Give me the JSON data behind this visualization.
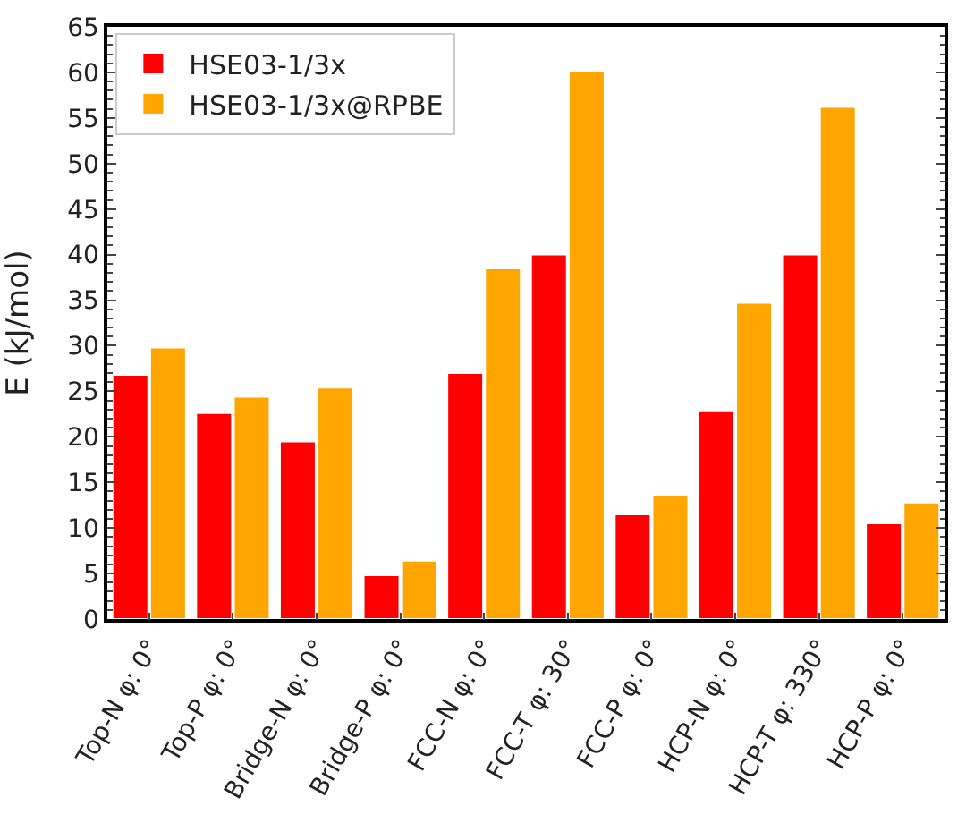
{
  "chart_data": {
    "type": "bar",
    "ylabel": "E (kJ/mol)",
    "categories": [
      "Top-N φ: 0°",
      "Top-P φ: 0°",
      "Bridge-N φ: 0°",
      "Bridge-P φ: 0°",
      "FCC-N φ: 0°",
      "FCC-T φ: 30°",
      "FCC-P φ: 0°",
      "HCP-N φ: 0°",
      "HCP-T φ: 330°",
      "HCP-P φ: 0°"
    ],
    "series": [
      {
        "name": "HSE03-1/3x",
        "color": "#ff0000",
        "values": [
          26.8,
          22.6,
          19.5,
          4.8,
          27,
          40,
          11.5,
          22.8,
          40,
          10.5
        ]
      },
      {
        "name": "HSE03-1/3x@RPBE",
        "color": "#ffa500",
        "values": [
          29.8,
          24.4,
          25.4,
          6.4,
          38.5,
          60.1,
          13.6,
          34.7,
          56.2,
          12.8
        ]
      }
    ],
    "ylim": [
      0,
      65
    ],
    "yticks": [
      0,
      5,
      10,
      15,
      20,
      25,
      30,
      35,
      40,
      45,
      50,
      55,
      60,
      65
    ],
    "grid": false,
    "legend": "top left"
  }
}
